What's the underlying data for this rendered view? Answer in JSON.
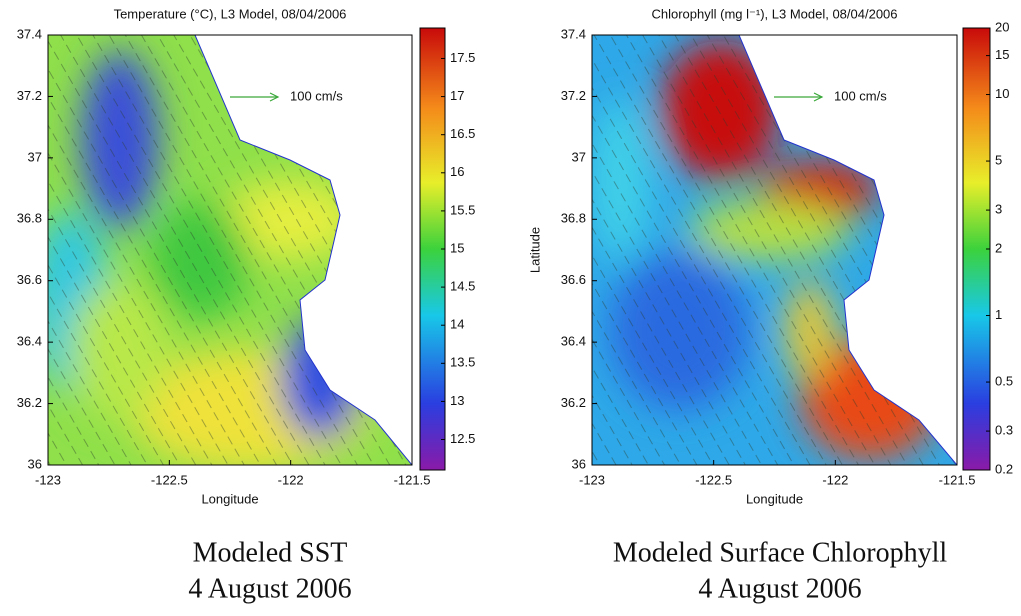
{
  "chart_data": [
    {
      "type": "map",
      "title": "Temperature (°C), L3 Model, 08/04/2006",
      "x_label": "Longitude",
      "xlim": [
        -123,
        -121.5
      ],
      "xticks": [
        -123,
        -122.5,
        -122,
        -121.5
      ],
      "ylim": [
        36,
        37.4
      ],
      "yticks": [
        36,
        36.2,
        36.4,
        36.6,
        36.8,
        37,
        37.2,
        37.4
      ],
      "annotation": "100 cm/s",
      "clim": [
        12.1,
        17.9
      ],
      "cticks": [
        12.5,
        13,
        13.5,
        14,
        14.5,
        15,
        15.5,
        16,
        16.5,
        17,
        17.5
      ],
      "colorbar_log": false,
      "caption": [
        "Modeled SST",
        "4 August 2006"
      ]
    },
    {
      "type": "map",
      "title": "Chlorophyll (mg l⁻¹), L3 Model, 08/04/2006",
      "x_label": "Longitude",
      "y_label": "Latitude",
      "xlim": [
        -123,
        -121.5
      ],
      "xticks": [
        -123,
        -122.5,
        -122,
        -121.5
      ],
      "ylim": [
        36,
        37.4
      ],
      "yticks": [
        36,
        36.2,
        36.4,
        36.6,
        36.8,
        37,
        37.2,
        37.4
      ],
      "annotation": "100 cm/s",
      "clim": [
        0.2,
        20
      ],
      "cticks": [
        0.2,
        0.3,
        0.5,
        1,
        2,
        3,
        5,
        10,
        15,
        20
      ],
      "colorbar_log": true,
      "caption": [
        "Modeled Surface Chlorophyll",
        "4 August 2006"
      ]
    }
  ]
}
